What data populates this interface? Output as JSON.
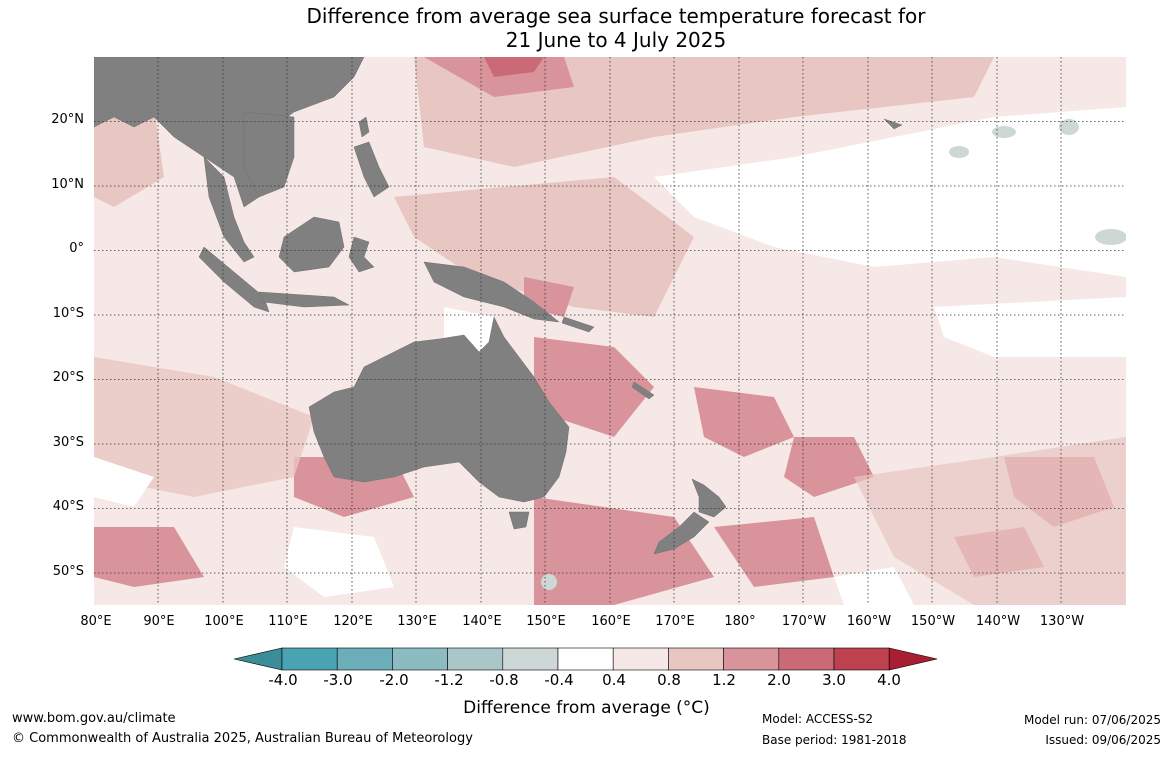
{
  "title": {
    "line1": "Difference from average sea surface temperature forecast for",
    "line2": "21 June to 4 July 2025"
  },
  "map": {
    "lon_range": [
      "80°E",
      "130°W"
    ],
    "lat_range": [
      "55°S",
      "30°N"
    ],
    "land_color": "#808080",
    "grid": "dotted"
  },
  "lat_labels": [
    "20°N",
    "10°N",
    "0°",
    "10°S",
    "20°S",
    "30°S",
    "40°S",
    "50°S"
  ],
  "lon_labels": [
    "80°E",
    "90°E",
    "100°E",
    "110°E",
    "120°E",
    "130°E",
    "140°E",
    "150°E",
    "160°E",
    "170°E",
    "180°",
    "170°W",
    "160°W",
    "150°W",
    "140°W",
    "130°W"
  ],
  "legend": {
    "ticks": [
      "-4.0",
      "-3.0",
      "-2.0",
      "-1.2",
      "-0.8",
      "-0.4",
      "0.4",
      "0.8",
      "1.2",
      "2.0",
      "3.0",
      "4.0"
    ],
    "colors": [
      "#4aa3b2",
      "#6badb9",
      "#8cbbc2",
      "#aac6c9",
      "#cdd7d6",
      "#ffffff",
      "#f6e8e6",
      "#e8c6c2",
      "#d9949b",
      "#c96a76",
      "#bd414f"
    ],
    "under_color": "#3b8d99",
    "over_color": "#a81f34",
    "title": "Difference from average (°C)"
  },
  "footer": {
    "website": "www.bom.gov.au/climate",
    "copyright": "© Commonwealth of Australia 2025, Australian Bureau of Meteorology",
    "model": "Model: ACCESS-S2",
    "base_period": "Base period: 1981-2018",
    "model_run": "Model run: 07/06/2025",
    "issued": "Issued: 09/06/2025"
  }
}
